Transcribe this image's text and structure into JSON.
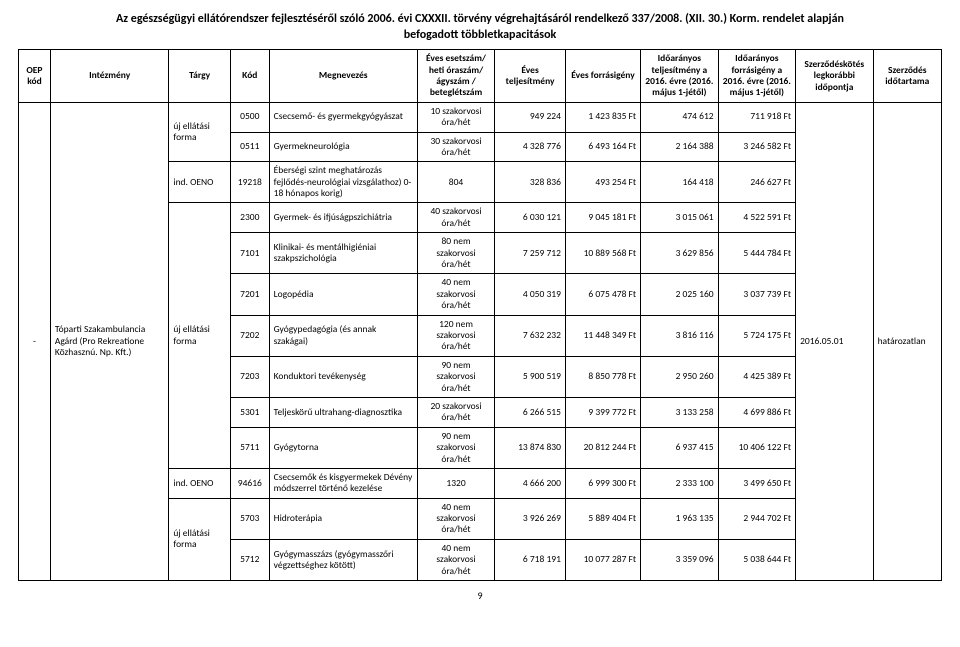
{
  "title_line1": "Az egészségügyi ellátórendszer fejlesztéséről szóló 2006. évi CXXXII. törvény végrehajtásáról rendelkező 337/2008. (XII. 30.) Korm. rendelet alapján",
  "title_line2": "befogadott többletkapacitások",
  "headers": {
    "oep": "OEP kód",
    "intezmeny": "Intézmény",
    "targy": "Tárgy",
    "kod": "Kód",
    "megnevezes": "Megnevezés",
    "esetszam": "Éves esetszám/ heti óraszám/ ágyszám / beteglétszám",
    "teljesitmeny": "Éves teljesítmény",
    "forrasigeny": "Éves forrásigény",
    "idoaranyos_telj": "Időarányos teljesítmény a 2016. évre (2016. május 1-jétől)",
    "idoaranyos_forr": "Időarányos forrásigény a 2016. évre (2016. május 1-jétől)",
    "szk": "Szerződéskötés legkorábbi időpontja",
    "szi": "Szerződés időtartama"
  },
  "oep_kod": "-",
  "intezmeny": "Tóparti Szakambulancia Agárd (Pro Rekreatione Közhasznú. Np. Kft.)",
  "szk_val": "2016.05.01",
  "szi_val": "határozatlan",
  "groups": [
    {
      "targy": "új ellátási forma",
      "rows": [
        {
          "kod": "0500",
          "meg": "Csecsemő- és gyermekgyógyászat",
          "eset": "10 szakorvosi óra/hét",
          "telj": "949 224",
          "forr": "1 423 835 Ft",
          "ido1": "474 612",
          "ido2": "711 918 Ft"
        },
        {
          "kod": "0511",
          "meg": "Gyermekneurológia",
          "eset": "30 szakorvosi óra/hét",
          "telj": "4 328 776",
          "forr": "6 493 164 Ft",
          "ido1": "2 164 388",
          "ido2": "3 246 582 Ft"
        }
      ]
    },
    {
      "targy": "ind. OENO",
      "rows": [
        {
          "kod": "19218",
          "meg": "Éberségi szint meghatározás fejlődés-neurológiai vizsgálathoz) 0-18 hónapos korig)",
          "eset": "804",
          "telj": "328 836",
          "forr": "493 254 Ft",
          "ido1": "164 418",
          "ido2": "246 627 Ft"
        }
      ]
    },
    {
      "targy": "új ellátási forma",
      "rows": [
        {
          "kod": "2300",
          "meg": "Gyermek- és ifjúságpszichiátria",
          "eset": "40 szakorvosi óra/hét",
          "telj": "6 030 121",
          "forr": "9 045 181 Ft",
          "ido1": "3 015 061",
          "ido2": "4 522 591 Ft"
        },
        {
          "kod": "7101",
          "meg": "Klinikai- és mentálhigiéniai szakpszichológia",
          "eset": "80 nem szakorvosi óra/hét",
          "telj": "7 259 712",
          "forr": "10 889 568 Ft",
          "ido1": "3 629 856",
          "ido2": "5 444 784 Ft"
        },
        {
          "kod": "7201",
          "meg": "Logopédia",
          "eset": "40 nem szakorvosi óra/hét",
          "telj": "4 050 319",
          "forr": "6 075 478 Ft",
          "ido1": "2 025 160",
          "ido2": "3 037 739 Ft"
        },
        {
          "kod": "7202",
          "meg": "Gyógypedagógia (és annak szakágai)",
          "eset": "120 nem szakorvosi óra/hét",
          "telj": "7 632 232",
          "forr": "11 448 349 Ft",
          "ido1": "3 816 116",
          "ido2": "5 724 175 Ft"
        },
        {
          "kod": "7203",
          "meg": "Konduktori tevékenység",
          "eset": "90 nem szakorvosi óra/hét",
          "telj": "5 900 519",
          "forr": "8 850 778 Ft",
          "ido1": "2 950 260",
          "ido2": "4 425 389 Ft"
        },
        {
          "kod": "5301",
          "meg": "Teljeskörű ultrahang-diagnosztika",
          "eset": "20 szakorvosi óra/hét",
          "telj": "6 266 515",
          "forr": "9 399 772 Ft",
          "ido1": "3 133 258",
          "ido2": "4 699 886 Ft"
        },
        {
          "kod": "5711",
          "meg": "Gyógytorna",
          "eset": "90 nem szakorvosi óra/hét",
          "telj": "13 874 830",
          "forr": "20 812 244 Ft",
          "ido1": "6 937 415",
          "ido2": "10 406 122 Ft"
        }
      ]
    },
    {
      "targy": "ind. OENO",
      "rows": [
        {
          "kod": "94616",
          "meg": "Csecsemők és kisgyermekek Dévény módszerrel történő kezelése",
          "eset": "1320",
          "telj": "4 666 200",
          "forr": "6 999 300 Ft",
          "ido1": "2 333 100",
          "ido2": "3 499 650 Ft"
        }
      ]
    },
    {
      "targy": "új ellátási forma",
      "rows": [
        {
          "kod": "5703",
          "meg": "Hidroterápia",
          "eset": "40 nem szakorvosi óra/hét",
          "telj": "3 926 269",
          "forr": "5 889 404 Ft",
          "ido1": "1 963 135",
          "ido2": "2 944 702 Ft"
        },
        {
          "kod": "5712",
          "meg": "Gyógymasszázs (gyógymasszőri végzettséghez kötött)",
          "eset": "40 nem szakorvosi óra/hét",
          "telj": "6 718 191",
          "forr": "10 077 287 Ft",
          "ido1": "3 359 096",
          "ido2": "5 038 644 Ft"
        }
      ]
    }
  ],
  "page_number": "9"
}
